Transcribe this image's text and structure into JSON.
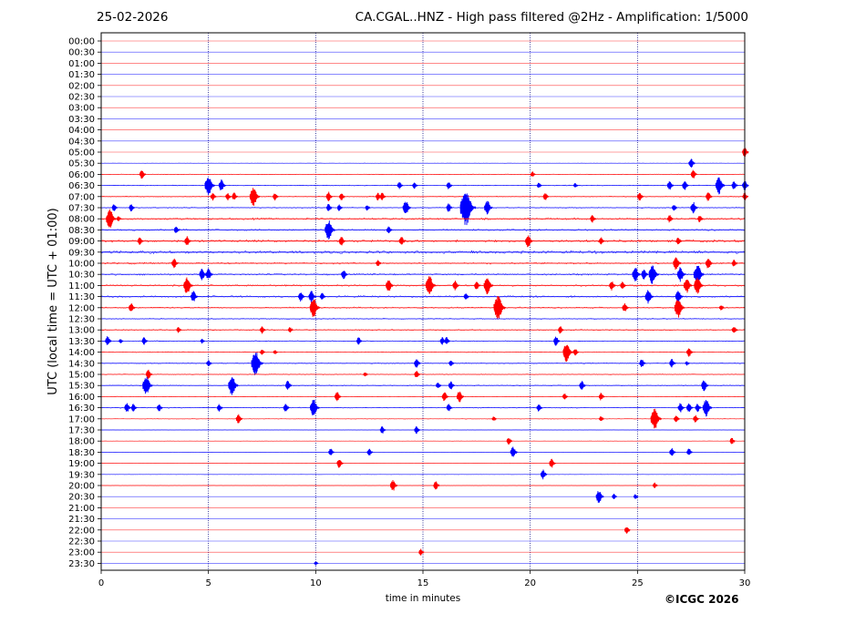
{
  "header": {
    "date": "25-02-2026",
    "title": "CA.CGAL..HNZ - High pass filtered @2Hz - Amplification: 1/5000"
  },
  "footer": {
    "copyright": "©ICGC 2026"
  },
  "colors": {
    "trace_a": "#ff0000",
    "trace_b": "#0000ff",
    "grid": "#000080",
    "axis": "#000000"
  },
  "chart_data": {
    "type": "line",
    "title": "CA.CGAL..HNZ - High pass filtered @2Hz - Amplification: 1/5000",
    "xlabel": "time in minutes",
    "ylabel": "UTC (local time = UTC + 01:00)",
    "xlim": [
      0,
      30
    ],
    "x_ticks": [
      0,
      5,
      10,
      15,
      20,
      25,
      30
    ],
    "grid": "vertical dotted lines at 5, 10, 15, 20, 25",
    "y_tick_labels": [
      "00:00",
      "00:30",
      "01:00",
      "01:30",
      "02:00",
      "02:30",
      "03:00",
      "03:30",
      "04:00",
      "04:30",
      "05:00",
      "05:30",
      "06:00",
      "06:30",
      "07:00",
      "07:30",
      "08:00",
      "08:30",
      "09:00",
      "09:30",
      "10:00",
      "10:30",
      "11:00",
      "11:30",
      "12:00",
      "12:30",
      "13:00",
      "13:30",
      "14:00",
      "14:30",
      "15:00",
      "15:30",
      "16:00",
      "16:30",
      "17:00",
      "17:30",
      "18:00",
      "18:30",
      "19:00",
      "19:30",
      "20:00",
      "20:30",
      "21:00",
      "21:30",
      "22:00",
      "22:30",
      "23:00",
      "23:30"
    ],
    "trace_colors": [
      "red",
      "blue"
    ],
    "noise_level": [
      0,
      0,
      0,
      0,
      0,
      0,
      0,
      0,
      0,
      0,
      0,
      0.1,
      0.2,
      0.3,
      0.3,
      0.4,
      0.7,
      0.6,
      0.9,
      1,
      0.6,
      0.6,
      0.6,
      0.6,
      0.5,
      0.4,
      0.4,
      0.3,
      0.3,
      0.3,
      0.3,
      0.3,
      0.2,
      0.3,
      0.2,
      0.1,
      0.1,
      0.1,
      0.1,
      0.1,
      0.1,
      0,
      0,
      0,
      0,
      0,
      0,
      0
    ],
    "events": [
      {
        "row": 10,
        "t": 30.0,
        "a": 1.0
      },
      {
        "row": 11,
        "t": 27.5,
        "a": 1.0
      },
      {
        "row": 12,
        "t": 1.9,
        "a": 1.0
      },
      {
        "row": 12,
        "t": 20.1,
        "a": 0.6
      },
      {
        "row": 12,
        "t": 27.6,
        "a": 0.9
      },
      {
        "row": 13,
        "t": 5.0,
        "a": 2.0
      },
      {
        "row": 13,
        "t": 5.6,
        "a": 1.2
      },
      {
        "row": 13,
        "t": 13.9,
        "a": 0.8
      },
      {
        "row": 13,
        "t": 14.6,
        "a": 0.7
      },
      {
        "row": 13,
        "t": 16.2,
        "a": 0.8
      },
      {
        "row": 13,
        "t": 20.4,
        "a": 0.6
      },
      {
        "row": 13,
        "t": 22.1,
        "a": 0.5
      },
      {
        "row": 13,
        "t": 26.5,
        "a": 1.0
      },
      {
        "row": 13,
        "t": 27.2,
        "a": 1.0
      },
      {
        "row": 13,
        "t": 28.8,
        "a": 1.8
      },
      {
        "row": 13,
        "t": 29.5,
        "a": 0.9
      },
      {
        "row": 13,
        "t": 30.0,
        "a": 1.0
      },
      {
        "row": 14,
        "t": 5.2,
        "a": 0.8
      },
      {
        "row": 14,
        "t": 5.9,
        "a": 0.8
      },
      {
        "row": 14,
        "t": 6.2,
        "a": 0.8
      },
      {
        "row": 14,
        "t": 7.1,
        "a": 2.0
      },
      {
        "row": 14,
        "t": 8.1,
        "a": 0.8
      },
      {
        "row": 14,
        "t": 10.6,
        "a": 1.0
      },
      {
        "row": 14,
        "t": 11.2,
        "a": 0.8
      },
      {
        "row": 14,
        "t": 12.9,
        "a": 0.8
      },
      {
        "row": 14,
        "t": 13.1,
        "a": 0.8
      },
      {
        "row": 14,
        "t": 20.7,
        "a": 0.8
      },
      {
        "row": 14,
        "t": 25.1,
        "a": 0.9
      },
      {
        "row": 14,
        "t": 28.3,
        "a": 1.0
      },
      {
        "row": 14,
        "t": 30.0,
        "a": 0.8
      },
      {
        "row": 15,
        "t": 0.6,
        "a": 0.8
      },
      {
        "row": 15,
        "t": 1.4,
        "a": 0.8
      },
      {
        "row": 15,
        "t": 10.6,
        "a": 0.8
      },
      {
        "row": 15,
        "t": 11.1,
        "a": 0.7
      },
      {
        "row": 15,
        "t": 12.4,
        "a": 0.6
      },
      {
        "row": 15,
        "t": 14.2,
        "a": 1.5
      },
      {
        "row": 15,
        "t": 16.2,
        "a": 0.9
      },
      {
        "row": 15,
        "t": 17.0,
        "a": 3.6
      },
      {
        "row": 15,
        "t": 18.0,
        "a": 1.5
      },
      {
        "row": 15,
        "t": 26.7,
        "a": 0.7
      },
      {
        "row": 15,
        "t": 27.6,
        "a": 1.2
      },
      {
        "row": 16,
        "t": 0.4,
        "a": 2.0
      },
      {
        "row": 16,
        "t": 0.8,
        "a": 0.6
      },
      {
        "row": 16,
        "t": 22.9,
        "a": 0.8
      },
      {
        "row": 16,
        "t": 26.5,
        "a": 0.8
      },
      {
        "row": 16,
        "t": 27.9,
        "a": 0.8
      },
      {
        "row": 17,
        "t": 3.5,
        "a": 0.8
      },
      {
        "row": 17,
        "t": 10.6,
        "a": 2.0
      },
      {
        "row": 17,
        "t": 13.4,
        "a": 0.8
      },
      {
        "row": 18,
        "t": 1.8,
        "a": 0.8
      },
      {
        "row": 18,
        "t": 4.0,
        "a": 1.0
      },
      {
        "row": 18,
        "t": 11.2,
        "a": 1.0
      },
      {
        "row": 18,
        "t": 14.0,
        "a": 1.0
      },
      {
        "row": 18,
        "t": 19.9,
        "a": 1.3
      },
      {
        "row": 18,
        "t": 23.3,
        "a": 0.8
      },
      {
        "row": 18,
        "t": 26.9,
        "a": 0.8
      },
      {
        "row": 20,
        "t": 3.4,
        "a": 1.0
      },
      {
        "row": 20,
        "t": 12.9,
        "a": 0.7
      },
      {
        "row": 20,
        "t": 26.8,
        "a": 1.4
      },
      {
        "row": 20,
        "t": 28.3,
        "a": 1.2
      },
      {
        "row": 20,
        "t": 29.5,
        "a": 0.8
      },
      {
        "row": 21,
        "t": 4.7,
        "a": 1.2
      },
      {
        "row": 21,
        "t": 5.0,
        "a": 1.2
      },
      {
        "row": 21,
        "t": 11.3,
        "a": 1.0
      },
      {
        "row": 21,
        "t": 24.9,
        "a": 1.5
      },
      {
        "row": 21,
        "t": 25.3,
        "a": 1.1
      },
      {
        "row": 21,
        "t": 25.7,
        "a": 2.0
      },
      {
        "row": 21,
        "t": 27.0,
        "a": 1.5
      },
      {
        "row": 21,
        "t": 27.8,
        "a": 2.1
      },
      {
        "row": 22,
        "t": 4.0,
        "a": 1.8
      },
      {
        "row": 22,
        "t": 13.4,
        "a": 1.3
      },
      {
        "row": 22,
        "t": 15.3,
        "a": 2.0
      },
      {
        "row": 22,
        "t": 16.5,
        "a": 1.0
      },
      {
        "row": 22,
        "t": 17.5,
        "a": 0.9
      },
      {
        "row": 22,
        "t": 18.0,
        "a": 1.8
      },
      {
        "row": 22,
        "t": 23.8,
        "a": 1.0
      },
      {
        "row": 22,
        "t": 24.3,
        "a": 0.8
      },
      {
        "row": 22,
        "t": 27.3,
        "a": 1.5
      },
      {
        "row": 22,
        "t": 27.8,
        "a": 1.8
      },
      {
        "row": 23,
        "t": 4.3,
        "a": 1.2
      },
      {
        "row": 23,
        "t": 9.3,
        "a": 1.0
      },
      {
        "row": 23,
        "t": 9.8,
        "a": 1.2
      },
      {
        "row": 23,
        "t": 10.3,
        "a": 0.8
      },
      {
        "row": 23,
        "t": 17.0,
        "a": 0.7
      },
      {
        "row": 23,
        "t": 25.5,
        "a": 1.5
      },
      {
        "row": 23,
        "t": 26.9,
        "a": 1.3
      },
      {
        "row": 24,
        "t": 1.4,
        "a": 1.0
      },
      {
        "row": 24,
        "t": 9.9,
        "a": 2.0
      },
      {
        "row": 24,
        "t": 18.5,
        "a": 2.5
      },
      {
        "row": 24,
        "t": 24.4,
        "a": 1.0
      },
      {
        "row": 24,
        "t": 26.9,
        "a": 2.0
      },
      {
        "row": 24,
        "t": 28.9,
        "a": 0.6
      },
      {
        "row": 26,
        "t": 3.6,
        "a": 0.6
      },
      {
        "row": 26,
        "t": 7.5,
        "a": 0.8
      },
      {
        "row": 26,
        "t": 8.8,
        "a": 0.6
      },
      {
        "row": 26,
        "t": 21.4,
        "a": 0.8
      },
      {
        "row": 26,
        "t": 29.5,
        "a": 0.8
      },
      {
        "row": 27,
        "t": 0.3,
        "a": 1.0
      },
      {
        "row": 27,
        "t": 0.9,
        "a": 0.5
      },
      {
        "row": 27,
        "t": 2.0,
        "a": 0.8
      },
      {
        "row": 27,
        "t": 4.7,
        "a": 0.5
      },
      {
        "row": 27,
        "t": 12.0,
        "a": 0.8
      },
      {
        "row": 27,
        "t": 15.9,
        "a": 0.8
      },
      {
        "row": 27,
        "t": 16.1,
        "a": 0.8
      },
      {
        "row": 27,
        "t": 21.2,
        "a": 1.0
      },
      {
        "row": 28,
        "t": 7.5,
        "a": 0.6
      },
      {
        "row": 28,
        "t": 8.1,
        "a": 0.5
      },
      {
        "row": 28,
        "t": 21.7,
        "a": 2.0
      },
      {
        "row": 28,
        "t": 22.1,
        "a": 0.8
      },
      {
        "row": 28,
        "t": 27.4,
        "a": 1.0
      },
      {
        "row": 29,
        "t": 5.0,
        "a": 0.7
      },
      {
        "row": 29,
        "t": 7.2,
        "a": 2.5
      },
      {
        "row": 29,
        "t": 14.7,
        "a": 1.0
      },
      {
        "row": 29,
        "t": 16.3,
        "a": 0.7
      },
      {
        "row": 29,
        "t": 25.2,
        "a": 0.9
      },
      {
        "row": 29,
        "t": 26.6,
        "a": 0.9
      },
      {
        "row": 29,
        "t": 27.3,
        "a": 0.5
      },
      {
        "row": 30,
        "t": 2.2,
        "a": 1.0
      },
      {
        "row": 30,
        "t": 12.3,
        "a": 0.5
      },
      {
        "row": 30,
        "t": 14.7,
        "a": 0.8
      },
      {
        "row": 31,
        "t": 2.1,
        "a": 2.0
      },
      {
        "row": 31,
        "t": 6.1,
        "a": 2.0
      },
      {
        "row": 31,
        "t": 8.7,
        "a": 1.0
      },
      {
        "row": 31,
        "t": 15.7,
        "a": 0.7
      },
      {
        "row": 31,
        "t": 16.3,
        "a": 0.9
      },
      {
        "row": 31,
        "t": 22.4,
        "a": 1.0
      },
      {
        "row": 31,
        "t": 28.1,
        "a": 1.2
      },
      {
        "row": 32,
        "t": 11.0,
        "a": 1.0
      },
      {
        "row": 32,
        "t": 16.0,
        "a": 1.0
      },
      {
        "row": 32,
        "t": 16.7,
        "a": 1.2
      },
      {
        "row": 32,
        "t": 21.6,
        "a": 0.7
      },
      {
        "row": 32,
        "t": 23.3,
        "a": 0.8
      },
      {
        "row": 33,
        "t": 1.2,
        "a": 1.0
      },
      {
        "row": 33,
        "t": 1.5,
        "a": 0.8
      },
      {
        "row": 33,
        "t": 2.7,
        "a": 0.8
      },
      {
        "row": 33,
        "t": 5.5,
        "a": 0.8
      },
      {
        "row": 33,
        "t": 8.6,
        "a": 0.9
      },
      {
        "row": 33,
        "t": 9.9,
        "a": 1.8
      },
      {
        "row": 33,
        "t": 16.2,
        "a": 0.8
      },
      {
        "row": 33,
        "t": 20.4,
        "a": 0.8
      },
      {
        "row": 33,
        "t": 27.0,
        "a": 1.0
      },
      {
        "row": 33,
        "t": 27.4,
        "a": 1.0
      },
      {
        "row": 33,
        "t": 27.8,
        "a": 0.9
      },
      {
        "row": 33,
        "t": 28.2,
        "a": 1.8
      },
      {
        "row": 34,
        "t": 6.4,
        "a": 1.0
      },
      {
        "row": 34,
        "t": 18.3,
        "a": 0.5
      },
      {
        "row": 34,
        "t": 23.3,
        "a": 0.6
      },
      {
        "row": 34,
        "t": 25.8,
        "a": 2.2
      },
      {
        "row": 34,
        "t": 26.8,
        "a": 0.8
      },
      {
        "row": 34,
        "t": 27.7,
        "a": 0.8
      },
      {
        "row": 35,
        "t": 13.1,
        "a": 0.8
      },
      {
        "row": 35,
        "t": 14.7,
        "a": 0.8
      },
      {
        "row": 36,
        "t": 19.0,
        "a": 0.8
      },
      {
        "row": 36,
        "t": 29.4,
        "a": 0.7
      },
      {
        "row": 37,
        "t": 10.7,
        "a": 0.8
      },
      {
        "row": 37,
        "t": 12.5,
        "a": 0.8
      },
      {
        "row": 37,
        "t": 19.2,
        "a": 1.2
      },
      {
        "row": 37,
        "t": 26.6,
        "a": 0.9
      },
      {
        "row": 37,
        "t": 27.4,
        "a": 0.8
      },
      {
        "row": 38,
        "t": 11.1,
        "a": 1.0
      },
      {
        "row": 38,
        "t": 21.0,
        "a": 1.0
      },
      {
        "row": 39,
        "t": 20.6,
        "a": 1.0
      },
      {
        "row": 40,
        "t": 13.6,
        "a": 1.2
      },
      {
        "row": 40,
        "t": 15.6,
        "a": 0.9
      },
      {
        "row": 40,
        "t": 25.8,
        "a": 0.6
      },
      {
        "row": 41,
        "t": 23.2,
        "a": 1.4
      },
      {
        "row": 41,
        "t": 23.9,
        "a": 0.6
      },
      {
        "row": 41,
        "t": 24.9,
        "a": 0.5
      },
      {
        "row": 44,
        "t": 24.5,
        "a": 0.8
      },
      {
        "row": 46,
        "t": 14.9,
        "a": 0.7
      },
      {
        "row": 47,
        "t": 10.0,
        "a": 0.4
      }
    ]
  }
}
